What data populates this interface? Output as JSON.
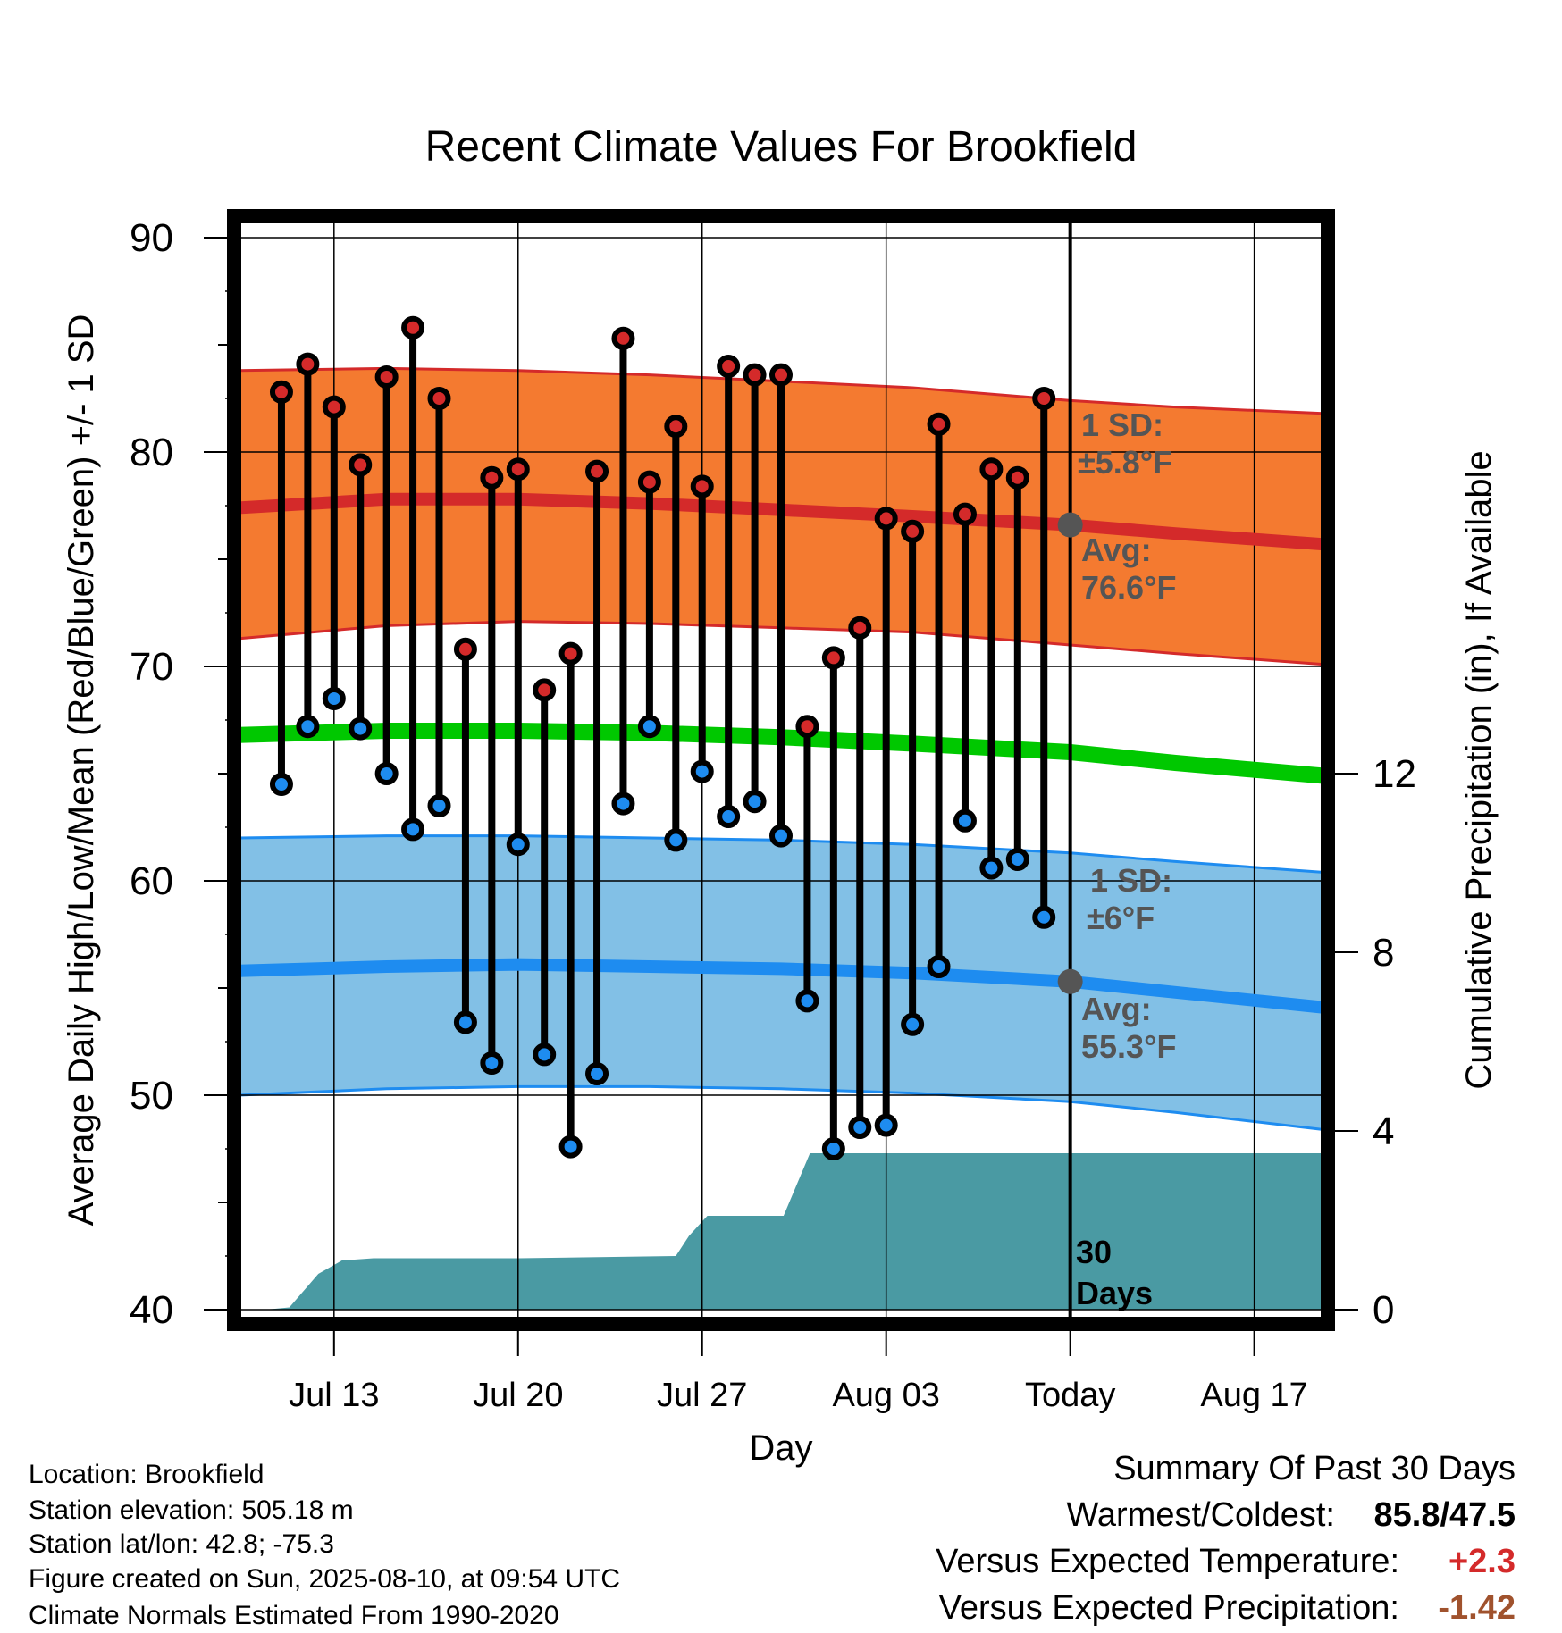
{
  "chart_data": {
    "type": "line",
    "title": "Recent Climate Values For Brookfield",
    "xlabel": "Day",
    "ylabel": "Average Daily High/Low/Mean (Red/Blue/Green) +/- 1 SD",
    "y2label": "Cumulative Precipitation (in), If Available",
    "ylim": [
      40,
      90
    ],
    "y2lim": [
      0,
      24
    ],
    "yticks": [
      40,
      50,
      60,
      70,
      80,
      90
    ],
    "y2ticks": [
      0,
      4,
      8,
      12
    ],
    "xlim": [
      -0.8,
      40.8
    ],
    "xticks": [
      {
        "x": 3,
        "label": "Jul 13"
      },
      {
        "x": 10,
        "label": "Jul 20"
      },
      {
        "x": 17,
        "label": "Jul 27"
      },
      {
        "x": 24,
        "label": "Aug 03"
      },
      {
        "x": 31,
        "label": "Today"
      },
      {
        "x": 38,
        "label": "Aug 17"
      }
    ],
    "grid": true,
    "today_x": 31,
    "normals": {
      "x": [
        -0.6,
        5,
        10,
        15,
        20,
        25,
        31,
        35,
        40.6
      ],
      "high_mean": [
        77.4,
        77.8,
        77.8,
        77.6,
        77.3,
        77.0,
        76.6,
        76.2,
        75.7
      ],
      "high_upper": [
        83.8,
        83.9,
        83.8,
        83.6,
        83.3,
        83.0,
        82.4,
        82.1,
        81.8
      ],
      "high_lower": [
        71.3,
        71.9,
        72.1,
        72.0,
        71.8,
        71.6,
        71.0,
        70.6,
        70.1
      ],
      "low_mean": [
        55.8,
        56.0,
        56.1,
        56.0,
        55.9,
        55.7,
        55.3,
        54.8,
        54.1
      ],
      "low_upper": [
        62.0,
        62.1,
        62.1,
        62.0,
        61.9,
        61.7,
        61.3,
        60.9,
        60.4
      ],
      "low_lower": [
        50.0,
        50.3,
        50.4,
        50.4,
        50.3,
        50.1,
        49.7,
        49.2,
        48.4
      ],
      "mean": [
        66.8,
        67.0,
        67.0,
        66.9,
        66.7,
        66.4,
        66.0,
        65.5,
        64.9
      ]
    },
    "high_avg_label": {
      "title": "Avg:",
      "value": "76.6°F",
      "y": 76.6
    },
    "high_sd_label": {
      "title": "1 SD:",
      "value": "±5.8°F"
    },
    "low_avg_label": {
      "title": "Avg:",
      "value": "55.3°F",
      "y": 55.3
    },
    "low_sd_label": {
      "title": "1 SD:",
      "value": "±6°F"
    },
    "days_label": [
      "30",
      "Days"
    ],
    "daily": [
      {
        "x": 1,
        "high": 82.8,
        "low": 64.5
      },
      {
        "x": 2,
        "high": 84.1,
        "low": 67.2
      },
      {
        "x": 3,
        "high": 82.1,
        "low": 68.5
      },
      {
        "x": 4,
        "high": 79.4,
        "low": 67.1
      },
      {
        "x": 5,
        "high": 83.5,
        "low": 65.0
      },
      {
        "x": 6,
        "high": 85.8,
        "low": 62.4
      },
      {
        "x": 7,
        "high": 82.5,
        "low": 63.5
      },
      {
        "x": 8,
        "high": 70.8,
        "low": 53.4
      },
      {
        "x": 9,
        "high": 78.8,
        "low": 51.5
      },
      {
        "x": 10,
        "high": 79.2,
        "low": 61.7
      },
      {
        "x": 11,
        "high": 68.9,
        "low": 51.9
      },
      {
        "x": 12,
        "high": 70.6,
        "low": 47.6
      },
      {
        "x": 13,
        "high": 79.1,
        "low": 51.0
      },
      {
        "x": 14,
        "high": 85.3,
        "low": 63.6
      },
      {
        "x": 15,
        "high": 78.6,
        "low": 67.2
      },
      {
        "x": 16,
        "high": 81.2,
        "low": 61.9
      },
      {
        "x": 17,
        "high": 78.4,
        "low": 65.1
      },
      {
        "x": 18,
        "high": 84.0,
        "low": 63.0
      },
      {
        "x": 19,
        "high": 83.6,
        "low": 63.7
      },
      {
        "x": 20,
        "high": 83.6,
        "low": 62.1
      },
      {
        "x": 21,
        "high": 67.2,
        "low": 54.4
      },
      {
        "x": 22,
        "high": 70.4,
        "low": 47.5
      },
      {
        "x": 23,
        "high": 71.8,
        "low": 48.5
      },
      {
        "x": 24,
        "high": 76.9,
        "low": 48.6
      },
      {
        "x": 25,
        "high": 76.3,
        "low": 53.3
      },
      {
        "x": 26,
        "high": 81.3,
        "low": 56.0
      },
      {
        "x": 27,
        "high": 77.1,
        "low": 62.8
      },
      {
        "x": 28,
        "high": 79.2,
        "low": 60.6
      },
      {
        "x": 29,
        "high": 78.8,
        "low": 61.0
      },
      {
        "x": 30,
        "high": 82.5,
        "low": 58.3
      }
    ],
    "precip_cumulative": {
      "x": [
        -0.6,
        0.4,
        1.3,
        2.4,
        3.3,
        4.5,
        10,
        16,
        16.5,
        17.2,
        19.1,
        20.1,
        21.1,
        40.6
      ],
      "y": [
        0,
        0,
        0.05,
        0.8,
        1.1,
        1.15,
        1.15,
        1.2,
        1.65,
        2.1,
        2.1,
        2.1,
        3.5,
        3.5
      ]
    }
  },
  "footer": {
    "location": "Location: Brookfield",
    "elevation": "Station elevation: 505.18 m",
    "latlon": "Station lat/lon: 42.8; -75.3",
    "created": "Figure created on Sun, 2025-08-10, at 09:54 UTC",
    "normals": "Climate Normals Estimated From 1990-2020"
  },
  "summary": {
    "title": "Summary Of Past 30 Days",
    "warm_label": "Warmest/Coldest:",
    "warm_value": "85.8/47.5",
    "temp_label": "Versus Expected Temperature:",
    "temp_value": "+2.3",
    "precip_label": "Versus Expected Precipitation:",
    "precip_value": "-1.42"
  },
  "colors": {
    "high_band": "#f47a30",
    "high_line": "#d42a2a",
    "low_band": "#82c0e6",
    "low_line": "#1e8cf0",
    "mean_line": "#00c800",
    "precip": "#4a9aa3",
    "high_dot": "#d42a2a",
    "low_dot": "#1e8cf0",
    "today_dot": "#555555",
    "temp_value": "#d42a2a",
    "precip_value": "#a0522d"
  }
}
